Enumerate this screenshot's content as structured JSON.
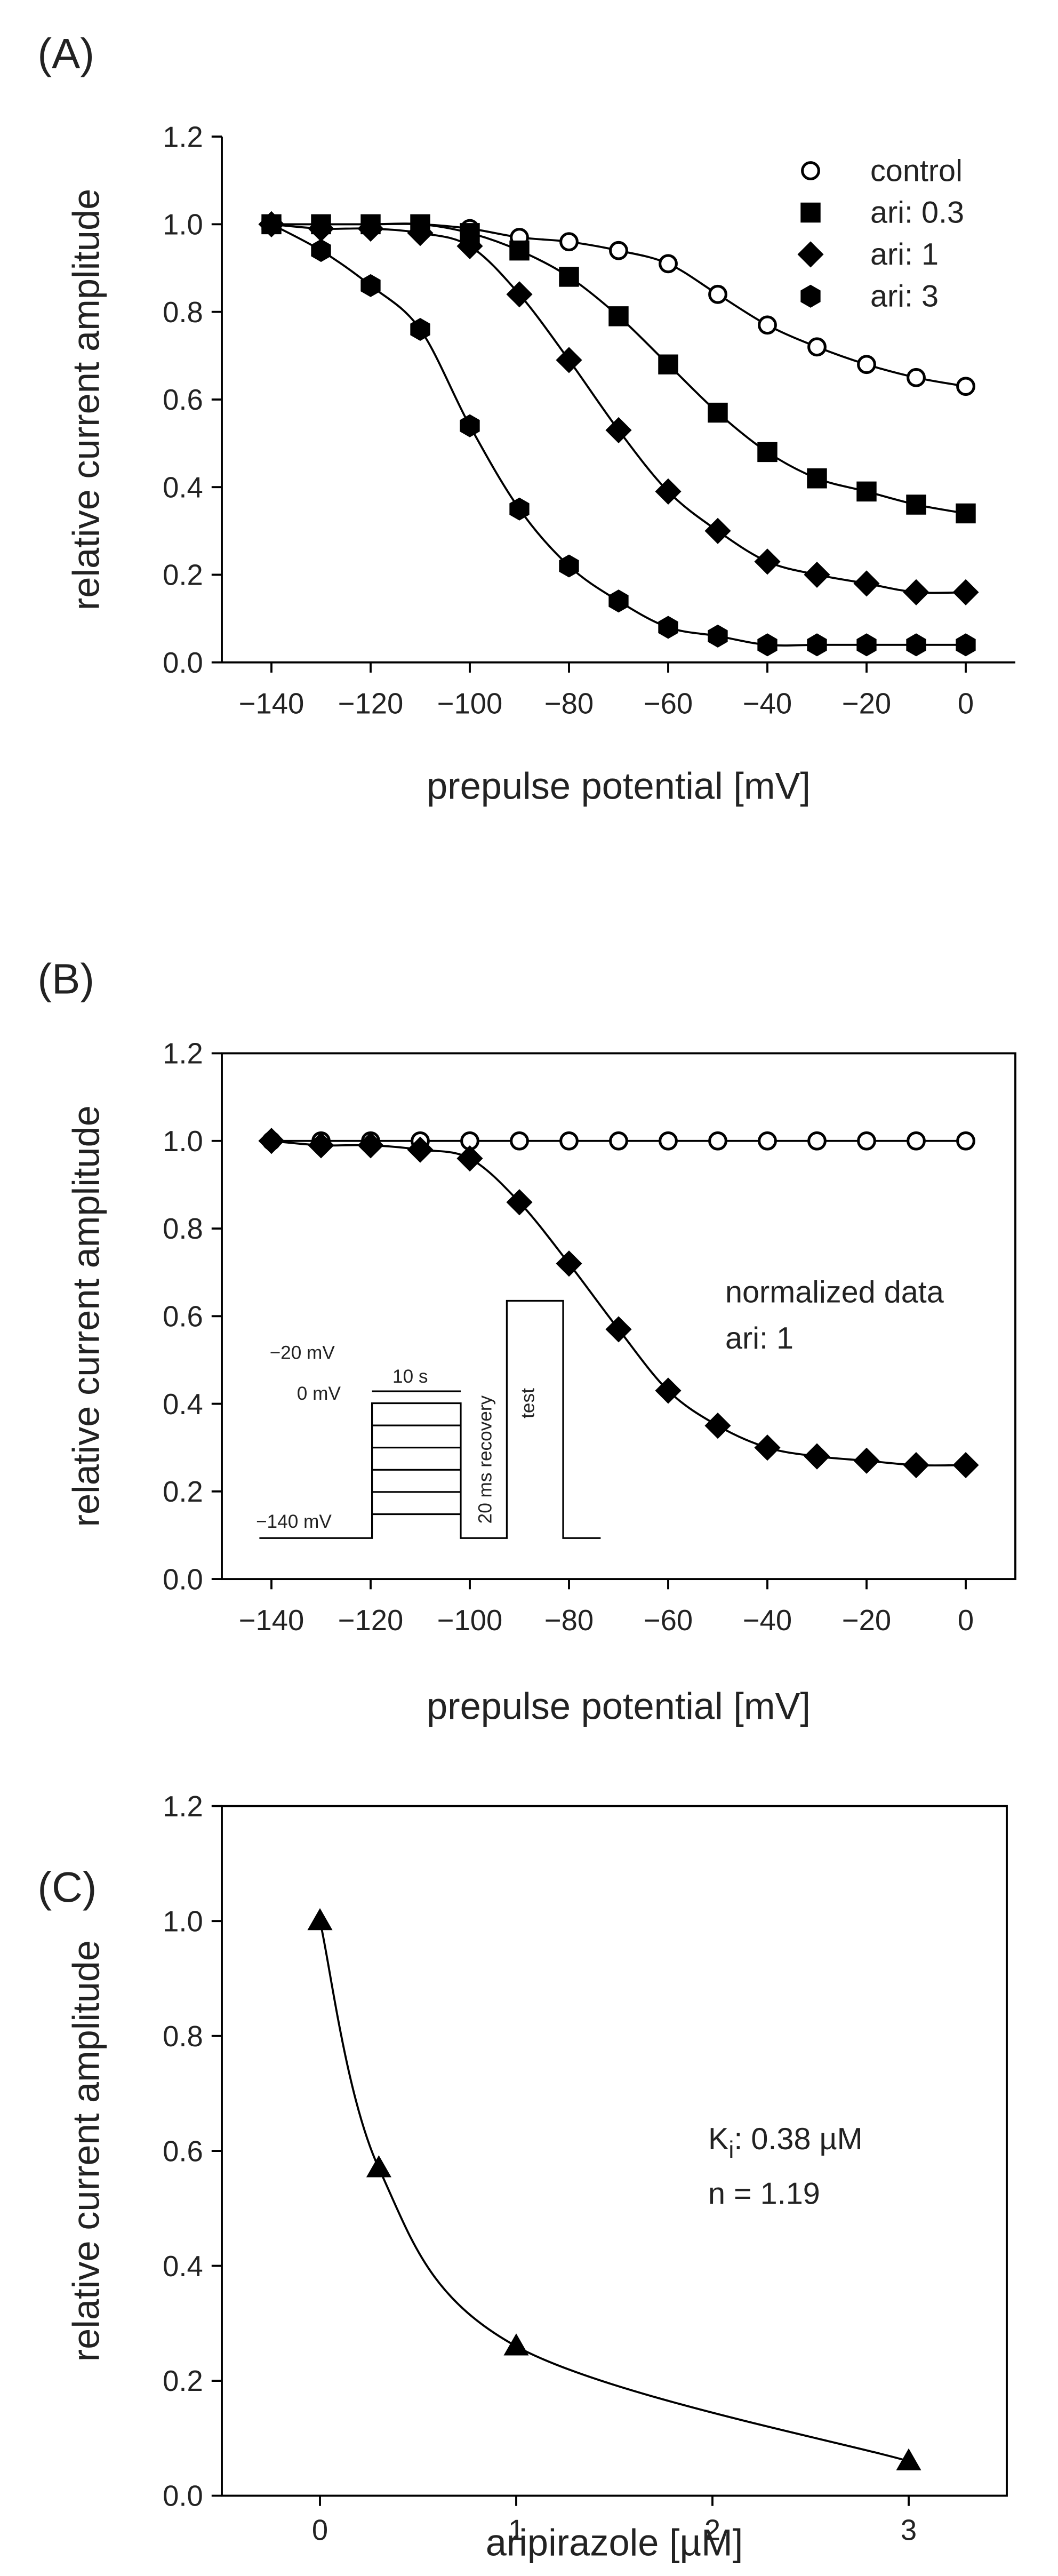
{
  "chart_data": [
    {
      "type": "scatter",
      "panel_label": "(A)",
      "y_label": "relative current amplitude",
      "x_label": "prepulse potential [mV]",
      "x": [
        -140,
        -130,
        -120,
        -110,
        -100,
        -90,
        -80,
        -70,
        -60,
        -50,
        -40,
        -30,
        -20,
        -10,
        0
      ],
      "series": [
        {
          "name": "control",
          "marker": "open-circle",
          "color": "#000000",
          "values": [
            1.0,
            1.0,
            1.0,
            1.0,
            0.99,
            0.97,
            0.96,
            0.94,
            0.91,
            0.84,
            0.77,
            0.72,
            0.68,
            0.65,
            0.63
          ]
        },
        {
          "name": "ari: 0.3",
          "marker": "square",
          "color": "#000000",
          "values": [
            1.0,
            1.0,
            1.0,
            1.0,
            0.98,
            0.94,
            0.88,
            0.79,
            0.68,
            0.57,
            0.48,
            0.42,
            0.39,
            0.36,
            0.34
          ]
        },
        {
          "name": "ari: 1",
          "marker": "diamond",
          "color": "#000000",
          "values": [
            1.0,
            0.99,
            0.99,
            0.98,
            0.95,
            0.84,
            0.69,
            0.53,
            0.39,
            0.3,
            0.23,
            0.2,
            0.18,
            0.16,
            0.16
          ]
        },
        {
          "name": "ari: 3",
          "marker": "hexagon",
          "color": "#000000",
          "values": [
            1.0,
            0.94,
            0.86,
            0.76,
            0.54,
            0.35,
            0.22,
            0.14,
            0.08,
            0.06,
            0.04,
            0.04,
            0.04,
            0.04,
            0.04
          ]
        }
      ],
      "xlim": [
        -150,
        10
      ],
      "ylim": [
        0,
        1.2
      ],
      "xticks": [
        {
          "value": -140,
          "label": "−140"
        },
        {
          "value": -120,
          "label": "−120"
        },
        {
          "value": -100,
          "label": "−100"
        },
        {
          "value": -80,
          "label": "−80"
        },
        {
          "value": -60,
          "label": "−60"
        },
        {
          "value": -40,
          "label": "−40"
        },
        {
          "value": -20,
          "label": "−20"
        },
        0
      ],
      "yticks": [
        {
          "value": 0,
          "label": "0.0"
        },
        0.2,
        0.4,
        0.6,
        0.8,
        {
          "value": 1,
          "label": "1.0"
        },
        1.2
      ],
      "legend": "upper right",
      "box": false
    },
    {
      "type": "scatter",
      "panel_label": "(B)",
      "y_label": "relative current amplitude",
      "x_label": "prepulse potential [mV]",
      "x": [
        -140,
        -130,
        -120,
        -110,
        -100,
        -90,
        -80,
        -70,
        -60,
        -50,
        -40,
        -30,
        -20,
        -10,
        0
      ],
      "series": [
        {
          "marker": "open-circle",
          "color": "#000000",
          "values": [
            1.0,
            1.0,
            1.0,
            1.0,
            1.0,
            1.0,
            1.0,
            1.0,
            1.0,
            1.0,
            1.0,
            1.0,
            1.0,
            1.0,
            1.0
          ]
        },
        {
          "marker": "diamond",
          "color": "#000000",
          "values": [
            1.0,
            0.99,
            0.99,
            0.98,
            0.96,
            0.86,
            0.72,
            0.57,
            0.43,
            0.35,
            0.3,
            0.28,
            0.27,
            0.26,
            0.26
          ]
        }
      ],
      "xlim": [
        -150,
        10
      ],
      "ylim": [
        0,
        1.2
      ],
      "xticks": [
        {
          "value": -140,
          "label": "−140"
        },
        {
          "value": -120,
          "label": "−120"
        },
        {
          "value": -100,
          "label": "−100"
        },
        {
          "value": -80,
          "label": "−80"
        },
        {
          "value": -60,
          "label": "−60"
        },
        {
          "value": -40,
          "label": "−40"
        },
        {
          "value": -20,
          "label": "−20"
        },
        0
      ],
      "yticks": [
        {
          "value": 0,
          "label": "0.0"
        },
        0.2,
        0.4,
        0.6,
        0.8,
        {
          "value": 1,
          "label": "1.0"
        },
        1.2
      ],
      "annotations": [
        "normalized data",
        "ari: 1"
      ],
      "inset_labels": [
        "−20 mV",
        "0 mV",
        "−140 mV",
        "10 s",
        "20 ms recovery",
        "test"
      ],
      "box": true
    },
    {
      "type": "scatter",
      "panel_label": "(C)",
      "y_label": "relative current amplitude",
      "x_label": "aripirazole [µM]",
      "x": [
        0,
        0.3,
        1,
        3
      ],
      "series": [
        {
          "marker": "triangle",
          "color": "#000000",
          "values": [
            1.0,
            0.57,
            0.26,
            0.06
          ]
        }
      ],
      "xlim": [
        -0.5,
        3.5
      ],
      "ylim": [
        0,
        1.2
      ],
      "xticks": [
        0,
        1,
        2,
        3
      ],
      "yticks": [
        {
          "value": 0,
          "label": "0.0"
        },
        0.2,
        0.4,
        0.6,
        0.8,
        {
          "value": 1,
          "label": "1.0"
        },
        1.2
      ],
      "ki_label": [
        "K",
        "i",
        ": 0.38 µM"
      ],
      "annotations": [
        "n = 1.19"
      ],
      "box": true
    }
  ]
}
